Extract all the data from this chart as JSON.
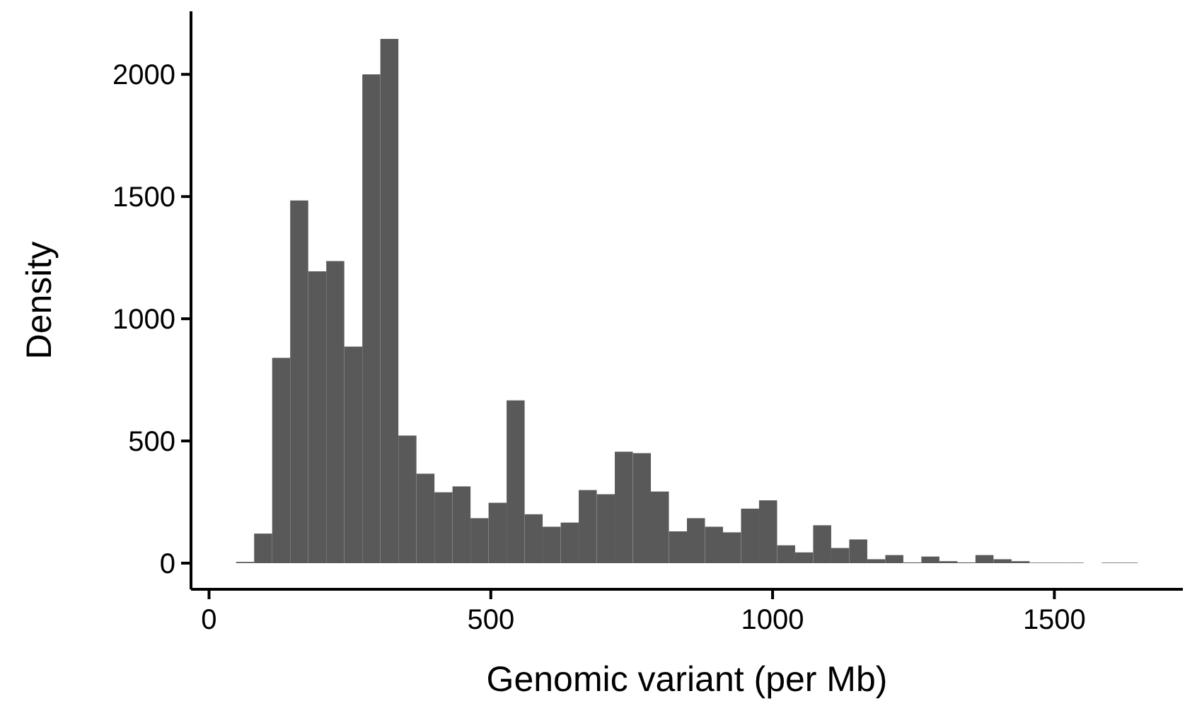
{
  "chart_data": {
    "type": "histogram",
    "xlabel": "Genomic variant (per Mb)",
    "ylabel": "Density",
    "color": "#595959",
    "bins": [
      48,
      80,
      112,
      144,
      176,
      208,
      240,
      272,
      304,
      336,
      368,
      400,
      432,
      464,
      496,
      528,
      560,
      592,
      624,
      656,
      688,
      720,
      752,
      784,
      816,
      848,
      880,
      912,
      944,
      976,
      1008,
      1040,
      1072,
      1104,
      1136,
      1168,
      1200,
      1232,
      1264,
      1296,
      1328,
      1360,
      1392,
      1424,
      1456,
      1488,
      1520,
      1552,
      1584,
      1616,
      1648
    ],
    "values": [
      5,
      121,
      840,
      1484,
      1194,
      1236,
      886,
      2000,
      2145,
      522,
      366,
      290,
      314,
      184,
      247,
      666,
      200,
      149,
      166,
      299,
      282,
      456,
      450,
      293,
      130,
      184,
      149,
      126,
      223,
      257,
      73,
      44,
      155,
      62,
      97,
      16,
      33,
      3,
      27,
      8,
      3,
      33,
      16,
      8,
      2,
      2,
      2,
      0,
      2,
      2
    ],
    "xlim": [
      -32,
      1728
    ],
    "xticks": [
      0,
      500,
      1000,
      1500
    ],
    "ylim": [
      -107,
      2258
    ],
    "yticks": [
      0,
      500,
      1000,
      1500,
      2000
    ],
    "grid": false
  }
}
